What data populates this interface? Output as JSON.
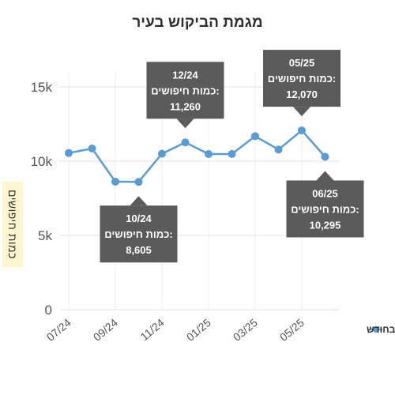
{
  "chart_data": {
    "type": "line",
    "title": "מגמת הביקוש בעיר",
    "ylabel": "כמות חיפושים",
    "xlabel": "",
    "ylim": [
      0,
      15000
    ],
    "y_ticks": [
      {
        "value": 0,
        "label": "0"
      },
      {
        "value": 5000,
        "label": "5k"
      },
      {
        "value": 10000,
        "label": "10k"
      },
      {
        "value": 15000,
        "label": "15k"
      }
    ],
    "x_tick_labels": [
      "07/24",
      "09/24",
      "11/24",
      "01/25",
      "03/25",
      "05/25"
    ],
    "grid": true,
    "legend_position": "right",
    "series": [
      {
        "name": "חיפושים בחודש",
        "color": "#5b9bd5",
        "x": [
          "07/24",
          "08/24",
          "09/24",
          "10/24",
          "11/24",
          "12/24",
          "01/25",
          "02/25",
          "03/25",
          "04/25",
          "05/25",
          "06/25"
        ],
        "values": [
          10550,
          10850,
          8620,
          8605,
          10500,
          11260,
          10480,
          10480,
          11680,
          10780,
          12070,
          10295
        ]
      }
    ],
    "annotations": [
      {
        "x": "12/24",
        "value": 11260,
        "lines": [
          "12/24",
          "כמות חיפושים:",
          "11,260"
        ],
        "placement": "above"
      },
      {
        "x": "05/25",
        "value": 12070,
        "lines": [
          "05/25",
          "כמות חיפושים:",
          "12,070"
        ],
        "placement": "above"
      },
      {
        "x": "10/24",
        "value": 8605,
        "lines": [
          "10/24",
          "כמות חיפושים:",
          "8,605"
        ],
        "placement": "below"
      },
      {
        "x": "06/25",
        "value": 10295,
        "lines": [
          "06/25",
          "כמות חיפושים:",
          "10,295"
        ],
        "placement": "below"
      }
    ]
  }
}
